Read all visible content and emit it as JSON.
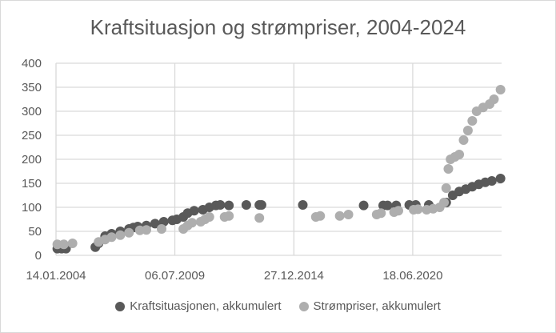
{
  "chart_data": {
    "type": "scatter",
    "title": "Kraftsituasjon og strømpriser, 2004-2024",
    "xlabel": "",
    "ylabel": "",
    "xlim": [
      2004.04,
      2024.55
    ],
    "ylim": [
      0,
      400
    ],
    "yticks": [
      0,
      50,
      100,
      150,
      200,
      250,
      300,
      350,
      400
    ],
    "xticks": [
      {
        "x": 2004.04,
        "label": "14.01.2004"
      },
      {
        "x": 2009.51,
        "label": "06.07.2009"
      },
      {
        "x": 2014.99,
        "label": "27.12.2014"
      },
      {
        "x": 2020.46,
        "label": "18.06.2020"
      }
    ],
    "grid": true,
    "legend": "bottom",
    "series": [
      {
        "name": "Kraftsituasjonen, akkumulert",
        "color": "#595959",
        "points": [
          [
            2004.1,
            14
          ],
          [
            2004.3,
            14
          ],
          [
            2004.5,
            14
          ],
          [
            2005.85,
            17
          ],
          [
            2006.0,
            25
          ],
          [
            2006.3,
            40
          ],
          [
            2006.6,
            45
          ],
          [
            2007.0,
            50
          ],
          [
            2007.4,
            55
          ],
          [
            2007.6,
            58
          ],
          [
            2007.8,
            60
          ],
          [
            2008.2,
            62
          ],
          [
            2008.6,
            66
          ],
          [
            2009.0,
            70
          ],
          [
            2009.4,
            73
          ],
          [
            2009.6,
            75
          ],
          [
            2009.9,
            80
          ],
          [
            2010.1,
            88
          ],
          [
            2010.4,
            93
          ],
          [
            2010.8,
            95
          ],
          [
            2011.1,
            100
          ],
          [
            2011.4,
            104
          ],
          [
            2011.6,
            105
          ],
          [
            2012.0,
            104
          ],
          [
            2012.8,
            105
          ],
          [
            2013.4,
            105
          ],
          [
            2013.5,
            105
          ],
          [
            2015.4,
            105
          ],
          [
            2018.2,
            104
          ],
          [
            2019.1,
            104
          ],
          [
            2019.3,
            104
          ],
          [
            2019.7,
            104
          ],
          [
            2020.3,
            105
          ],
          [
            2020.6,
            105
          ],
          [
            2021.2,
            105
          ],
          [
            2022.0,
            110
          ],
          [
            2022.3,
            125
          ],
          [
            2022.6,
            133
          ],
          [
            2022.9,
            138
          ],
          [
            2023.2,
            143
          ],
          [
            2023.5,
            148
          ],
          [
            2023.8,
            152
          ],
          [
            2024.1,
            155
          ],
          [
            2024.5,
            160
          ]
        ]
      },
      {
        "name": "Strømpriser, akkumulert",
        "color": "#aeaeae",
        "points": [
          [
            2004.1,
            23
          ],
          [
            2004.4,
            23
          ],
          [
            2004.8,
            25
          ],
          [
            2006.0,
            28
          ],
          [
            2006.3,
            33
          ],
          [
            2006.6,
            38
          ],
          [
            2007.0,
            42
          ],
          [
            2007.4,
            47
          ],
          [
            2007.9,
            52
          ],
          [
            2008.2,
            53
          ],
          [
            2008.9,
            55
          ],
          [
            2009.9,
            55
          ],
          [
            2010.1,
            62
          ],
          [
            2010.3,
            68
          ],
          [
            2010.7,
            70
          ],
          [
            2010.9,
            75
          ],
          [
            2011.1,
            80
          ],
          [
            2011.8,
            80
          ],
          [
            2012.0,
            82
          ],
          [
            2013.4,
            78
          ],
          [
            2016.0,
            80
          ],
          [
            2016.2,
            82
          ],
          [
            2017.1,
            82
          ],
          [
            2017.5,
            85
          ],
          [
            2018.8,
            85
          ],
          [
            2019.0,
            88
          ],
          [
            2019.6,
            90
          ],
          [
            2019.8,
            93
          ],
          [
            2020.5,
            95
          ],
          [
            2020.7,
            96
          ],
          [
            2021.1,
            95
          ],
          [
            2021.4,
            97
          ],
          [
            2021.7,
            100
          ],
          [
            2021.9,
            110
          ],
          [
            2022.0,
            140
          ],
          [
            2022.1,
            180
          ],
          [
            2022.2,
            200
          ],
          [
            2022.4,
            205
          ],
          [
            2022.6,
            210
          ],
          [
            2022.8,
            240
          ],
          [
            2023.0,
            260
          ],
          [
            2023.2,
            280
          ],
          [
            2023.4,
            300
          ],
          [
            2023.7,
            308
          ],
          [
            2024.0,
            315
          ],
          [
            2024.2,
            325
          ],
          [
            2024.5,
            345
          ]
        ]
      }
    ]
  }
}
